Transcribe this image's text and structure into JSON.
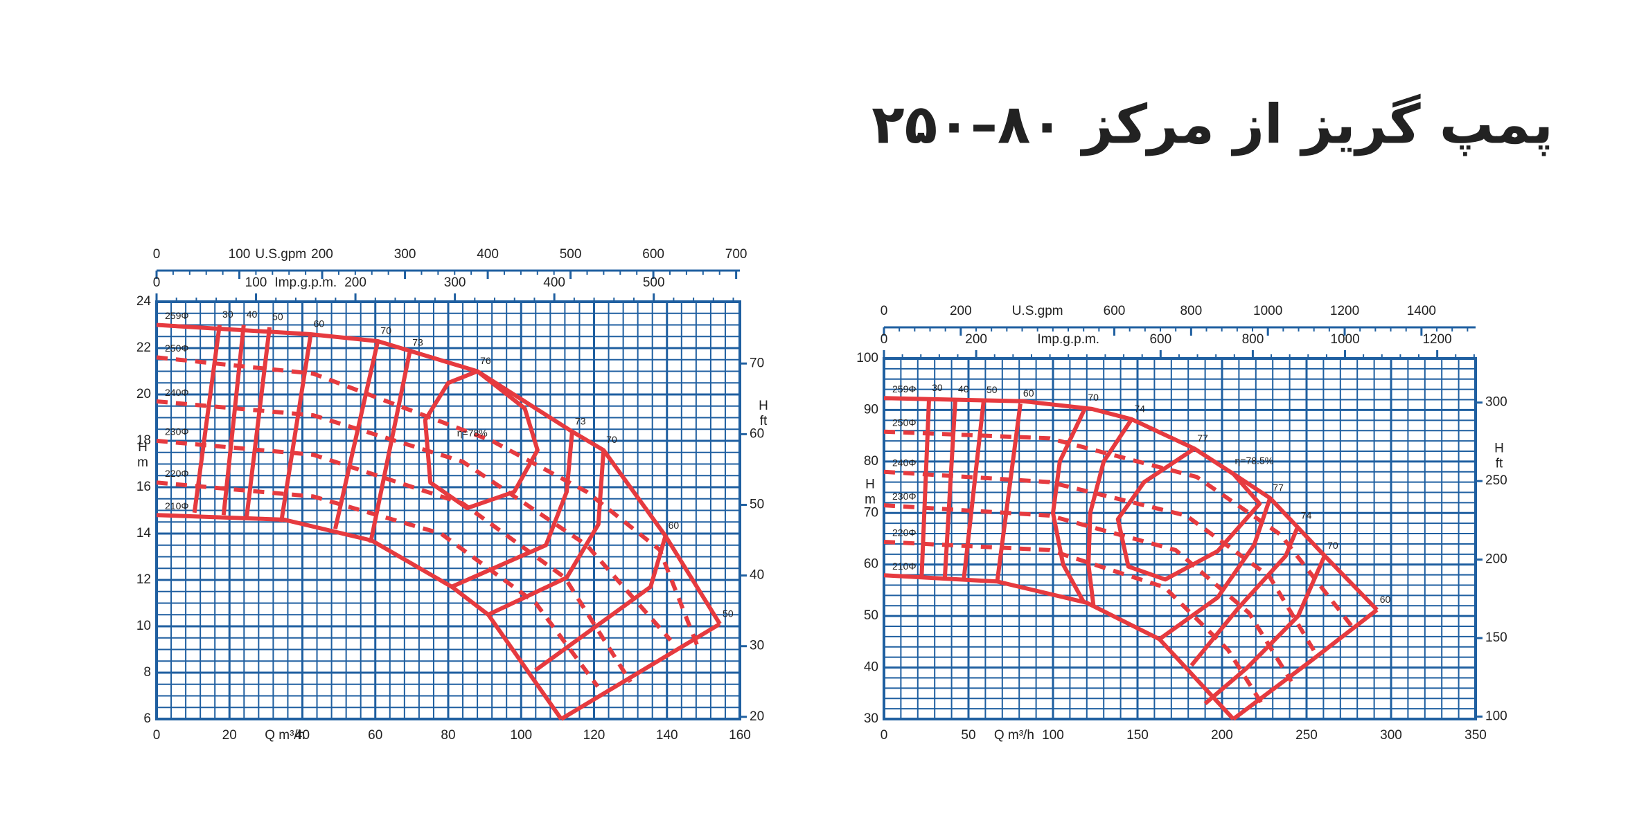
{
  "title": "پمپ گریز از مرکز ۸۰–۲۵۰",
  "chart_data": [
    {
      "type": "line",
      "xlabel": "Q m³/h",
      "ylabel": [
        "H",
        "m"
      ],
      "y2label": [
        "H",
        "ft"
      ],
      "xlim": [
        0,
        160
      ],
      "xticks": [
        0,
        20,
        40,
        60,
        80,
        100,
        120,
        140,
        160
      ],
      "ylim": [
        6,
        24
      ],
      "yticks": [
        6,
        8,
        10,
        12,
        14,
        16,
        18,
        20,
        22,
        24
      ],
      "y2lim": [
        19.69,
        78.74
      ],
      "y2ticks": [
        20,
        30,
        40,
        50,
        60,
        70
      ],
      "grid": true,
      "grid_color": "#1f5fa0",
      "top_axes": [
        {
          "label": "U.S.gpm",
          "lim": [
            0,
            704.5
          ],
          "ticks": [
            0,
            100,
            200,
            300,
            400,
            500,
            600,
            700
          ]
        },
        {
          "label": "Imp.g.p.m.",
          "lim": [
            0,
            586.6
          ],
          "ticks": [
            0,
            100,
            200,
            300,
            400,
            500
          ]
        }
      ],
      "series": [
        {
          "name": "259Φ",
          "color": "#e63a3f",
          "dash": false,
          "x": [
            0,
            42,
            60.7,
            88,
            114,
            122.6,
            139.6,
            154.5
          ],
          "values": [
            23,
            22.6,
            22.3,
            21,
            18.4,
            17.6,
            13.9,
            10.1
          ]
        },
        {
          "name": "250Φ",
          "color": "#e63a3f",
          "dash": true,
          "x": [
            0,
            43,
            92,
            118,
            138,
            149
          ],
          "values": [
            21.6,
            20.9,
            18,
            15.8,
            13.3,
            8.9
          ]
        },
        {
          "name": "240Φ",
          "color": "#e63a3f",
          "dash": true,
          "x": [
            0,
            43,
            84,
            118,
            141
          ],
          "values": [
            19.7,
            19.1,
            17.1,
            13.5,
            9.4
          ]
        },
        {
          "name": "230Φ",
          "color": "#e63a3f",
          "dash": true,
          "x": [
            0,
            43,
            84,
            112,
            130
          ],
          "values": [
            18,
            17.4,
            15.3,
            12.1,
            7.6
          ]
        },
        {
          "name": "220Φ",
          "color": "#e63a3f",
          "dash": true,
          "x": [
            0,
            43,
            78,
            104,
            121
          ],
          "values": [
            16.2,
            15.6,
            14,
            11,
            7.4
          ]
        },
        {
          "name": "210Φ",
          "color": "#e63a3f",
          "dash": false,
          "x": [
            0,
            35,
            59,
            81,
            91,
            111
          ],
          "values": [
            14.8,
            14.6,
            13.7,
            11.7,
            10.5,
            6
          ]
        }
      ],
      "efficiency": [
        {
          "name": "30",
          "x": [
            17.3,
            10.4
          ],
          "values": [
            23,
            14.9
          ]
        },
        {
          "name": "40",
          "x": [
            23.9,
            18.4
          ],
          "values": [
            23,
            14.8
          ]
        },
        {
          "name": "50",
          "x": [
            31,
            24.7
          ],
          "values": [
            22.9,
            14.7
          ]
        },
        {
          "name": "60",
          "x": [
            42.3,
            34.2
          ],
          "values": [
            22.6,
            14.5
          ]
        },
        {
          "name": "70",
          "x": [
            60.7,
            49
          ],
          "values": [
            22.3,
            14.2
          ]
        },
        {
          "name": "73",
          "x": [
            69.4,
            58.7
          ],
          "values": [
            21.8,
            13.6
          ]
        },
        {
          "name": "76",
          "x": [
            88,
            101,
            104.5,
            98.1,
            85.2,
            75.1,
            73.7,
            80,
            88
          ],
          "values": [
            21,
            19.4,
            17.6,
            15.8,
            15.1,
            16.2,
            18.9,
            20.5,
            21
          ]
        },
        {
          "name": "73",
          "x": [
            114,
            112.5,
            106.8,
            80.9
          ],
          "values": [
            18.4,
            15.8,
            13.5,
            11.7
          ]
        },
        {
          "name": "70",
          "x": [
            122.6,
            121.2,
            112.5,
            90.9
          ],
          "values": [
            17.6,
            14.4,
            12.1,
            10.5
          ]
        },
        {
          "name": "60",
          "x": [
            139.6,
            135.5,
            103.9
          ],
          "values": [
            13.9,
            11.7,
            8.1
          ]
        },
        {
          "name": "50",
          "x": [
            154.5,
            111
          ],
          "values": [
            10.1,
            6
          ]
        }
      ],
      "annotations": [
        {
          "text": "η=78%",
          "x": 86.6,
          "y": 18.3
        }
      ]
    },
    {
      "type": "line",
      "xlabel": "Q m³/h",
      "ylabel": [
        "H",
        "m"
      ],
      "y2label": [
        "H",
        "ft"
      ],
      "xlim": [
        0,
        350
      ],
      "xticks": [
        0,
        50,
        100,
        150,
        200,
        250,
        300,
        350
      ],
      "ylim": [
        30,
        100
      ],
      "yticks": [
        30,
        40,
        50,
        60,
        70,
        80,
        90,
        100
      ],
      "y2lim": [
        98.43,
        328.08
      ],
      "y2ticks": [
        100,
        150,
        200,
        250,
        300
      ],
      "grid": true,
      "grid_color": "#1f5fa0",
      "top_axes": [
        {
          "label": "U.S.gpm",
          "lim": [
            0,
            1541
          ],
          "ticks": [
            0,
            200,
            600,
            800,
            1000,
            1200,
            1400
          ]
        },
        {
          "label": "Imp.g.p.m.",
          "lim": [
            0,
            1283.2
          ],
          "ticks": [
            0,
            200,
            600,
            800,
            1000,
            1200
          ]
        }
      ],
      "series": [
        {
          "name": "259Φ",
          "color": "#e63a3f",
          "dash": false,
          "x": [
            0,
            82.6,
            123,
            146.5,
            183.7,
            206.7,
            228.4,
            260.7,
            291.7
          ],
          "values": [
            92.3,
            91.7,
            90.2,
            88.2,
            82.5,
            77.6,
            72.9,
            61.7,
            51.2
          ]
        },
        {
          "name": "250Φ",
          "color": "#e63a3f",
          "dash": true,
          "x": [
            0,
            98,
            185,
            234.6,
            278
          ],
          "values": [
            85.8,
            84.5,
            77,
            65.8,
            47.5
          ]
        },
        {
          "name": "240Φ",
          "color": "#e63a3f",
          "dash": true,
          "x": [
            0,
            98,
            178.8,
            228,
            256
          ],
          "values": [
            78,
            76,
            69.5,
            57.7,
            42.4
          ]
        },
        {
          "name": "230Φ",
          "color": "#e63a3f",
          "dash": true,
          "x": [
            0,
            98,
            172.6,
            216,
            241
          ],
          "values": [
            71.5,
            69.5,
            62.8,
            50.6,
            37.3
          ]
        },
        {
          "name": "220Φ",
          "color": "#e63a3f",
          "dash": true,
          "x": [
            0,
            98,
            166,
            203.6,
            225
          ],
          "values": [
            64.4,
            62.8,
            55.6,
            43.4,
            32.2
          ]
        },
        {
          "name": "210Φ",
          "color": "#e63a3f",
          "dash": false,
          "x": [
            0,
            67,
            119.8,
            163,
            206.7
          ],
          "values": [
            57.9,
            56.7,
            52.6,
            45.5,
            30
          ]
        }
      ],
      "efficiency": [
        {
          "name": "30",
          "x": [
            26.7,
            22.3
          ],
          "values": [
            92.3,
            57.7
          ]
        },
        {
          "name": "40",
          "x": [
            42.2,
            36
          ],
          "values": [
            92,
            57.3
          ]
        },
        {
          "name": "50",
          "x": [
            59,
            47.2
          ],
          "values": [
            91.9,
            57.1
          ]
        },
        {
          "name": "60",
          "x": [
            80.7,
            67
          ],
          "values": [
            91.2,
            56.7
          ]
        },
        {
          "name": "70",
          "x": [
            119,
            104,
            100,
            106,
            118
          ],
          "values": [
            90.4,
            80,
            70,
            60,
            52.8
          ]
        },
        {
          "name": "74",
          "x": [
            146.5,
            130,
            122,
            121,
            124
          ],
          "values": [
            88.2,
            80,
            70,
            60,
            51.8
          ]
        },
        {
          "name": "77",
          "x": [
            183.7,
            153.9,
            138.4,
            144.6,
            166.4,
            197.4,
            222.2,
            206.7
          ],
          "values": [
            82.5,
            76,
            68.8,
            59.6,
            57.1,
            62.6,
            71.8,
            77.6
          ]
        },
        {
          "name": "77",
          "x": [
            228.4,
            219,
            197.4,
            163
          ],
          "values": [
            72.9,
            63.8,
            53.6,
            45.5
          ]
        },
        {
          "name": "74",
          "x": [
            245,
            237.7,
            209.8,
            181.9
          ],
          "values": [
            67.5,
            61.7,
            51.6,
            40.4
          ]
        },
        {
          "name": "70",
          "x": [
            260.7,
            245,
            215,
            190
          ],
          "values": [
            61.7,
            50,
            40,
            33
          ]
        },
        {
          "name": "60",
          "x": [
            291.7,
            253,
            206.7
          ],
          "values": [
            51.2,
            41.4,
            30
          ]
        }
      ],
      "annotations": [
        {
          "text": "η=78.5%",
          "x": 219,
          "y": 80
        }
      ]
    }
  ]
}
